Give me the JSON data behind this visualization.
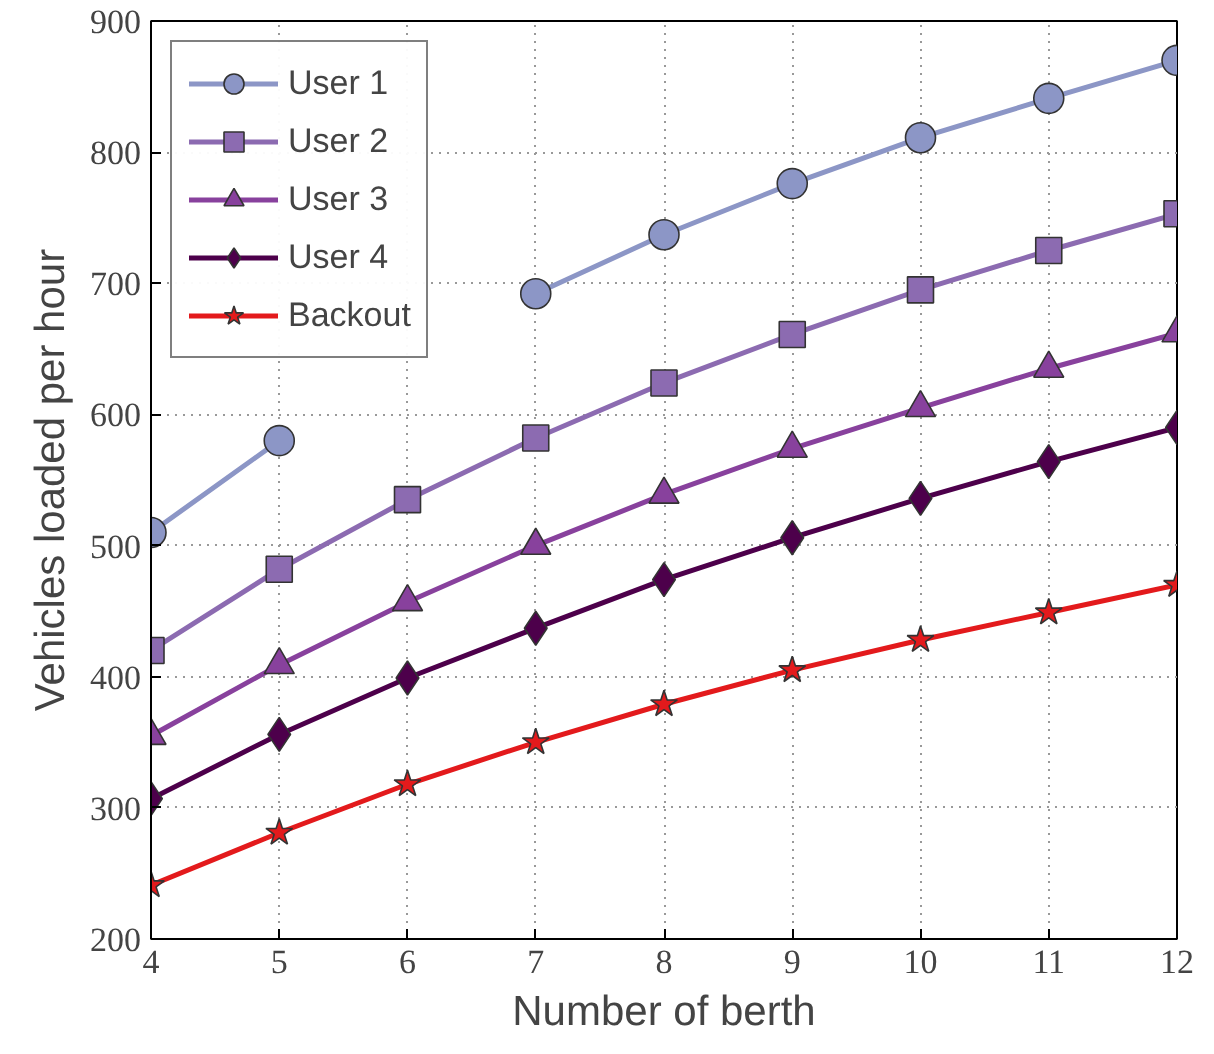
{
  "chart_data": {
    "type": "line",
    "xlabel": "Number of berth",
    "ylabel": "Vehicles loaded per hour",
    "x": [
      4,
      5,
      6,
      7,
      8,
      9,
      10,
      11,
      12
    ],
    "xlim": [
      4,
      12
    ],
    "xticks": [
      4,
      5,
      6,
      7,
      8,
      9,
      10,
      11,
      12
    ],
    "ylim": [
      200,
      900
    ],
    "yticks": [
      200,
      300,
      400,
      500,
      600,
      700,
      800,
      900
    ],
    "grid": true,
    "legend": "top left",
    "line_style": "solid",
    "series": [
      {
        "name": "User 1",
        "color": "#8c96c6",
        "marker": "circle",
        "values": [
          510,
          580,
          null,
          692,
          737,
          776,
          811,
          841,
          870
        ]
      },
      {
        "name": "User 2",
        "color": "#8c6bb1",
        "marker": "square",
        "values": [
          420,
          482,
          535,
          582,
          624,
          661,
          695,
          725,
          753
        ]
      },
      {
        "name": "User 3",
        "color": "#88419d",
        "marker": "triangle",
        "values": [
          355,
          409,
          457,
          500,
          539,
          574,
          605,
          635,
          662
        ]
      },
      {
        "name": "User 4",
        "color": "#4d004b",
        "marker": "diamond",
        "values": [
          307,
          356,
          399,
          437,
          474,
          506,
          536,
          564,
          590
        ]
      },
      {
        "name": "Backout",
        "color": "#e31a1c",
        "marker": "star",
        "values": [
          241,
          281,
          318,
          350,
          379,
          405,
          428,
          449,
          470
        ]
      }
    ]
  }
}
